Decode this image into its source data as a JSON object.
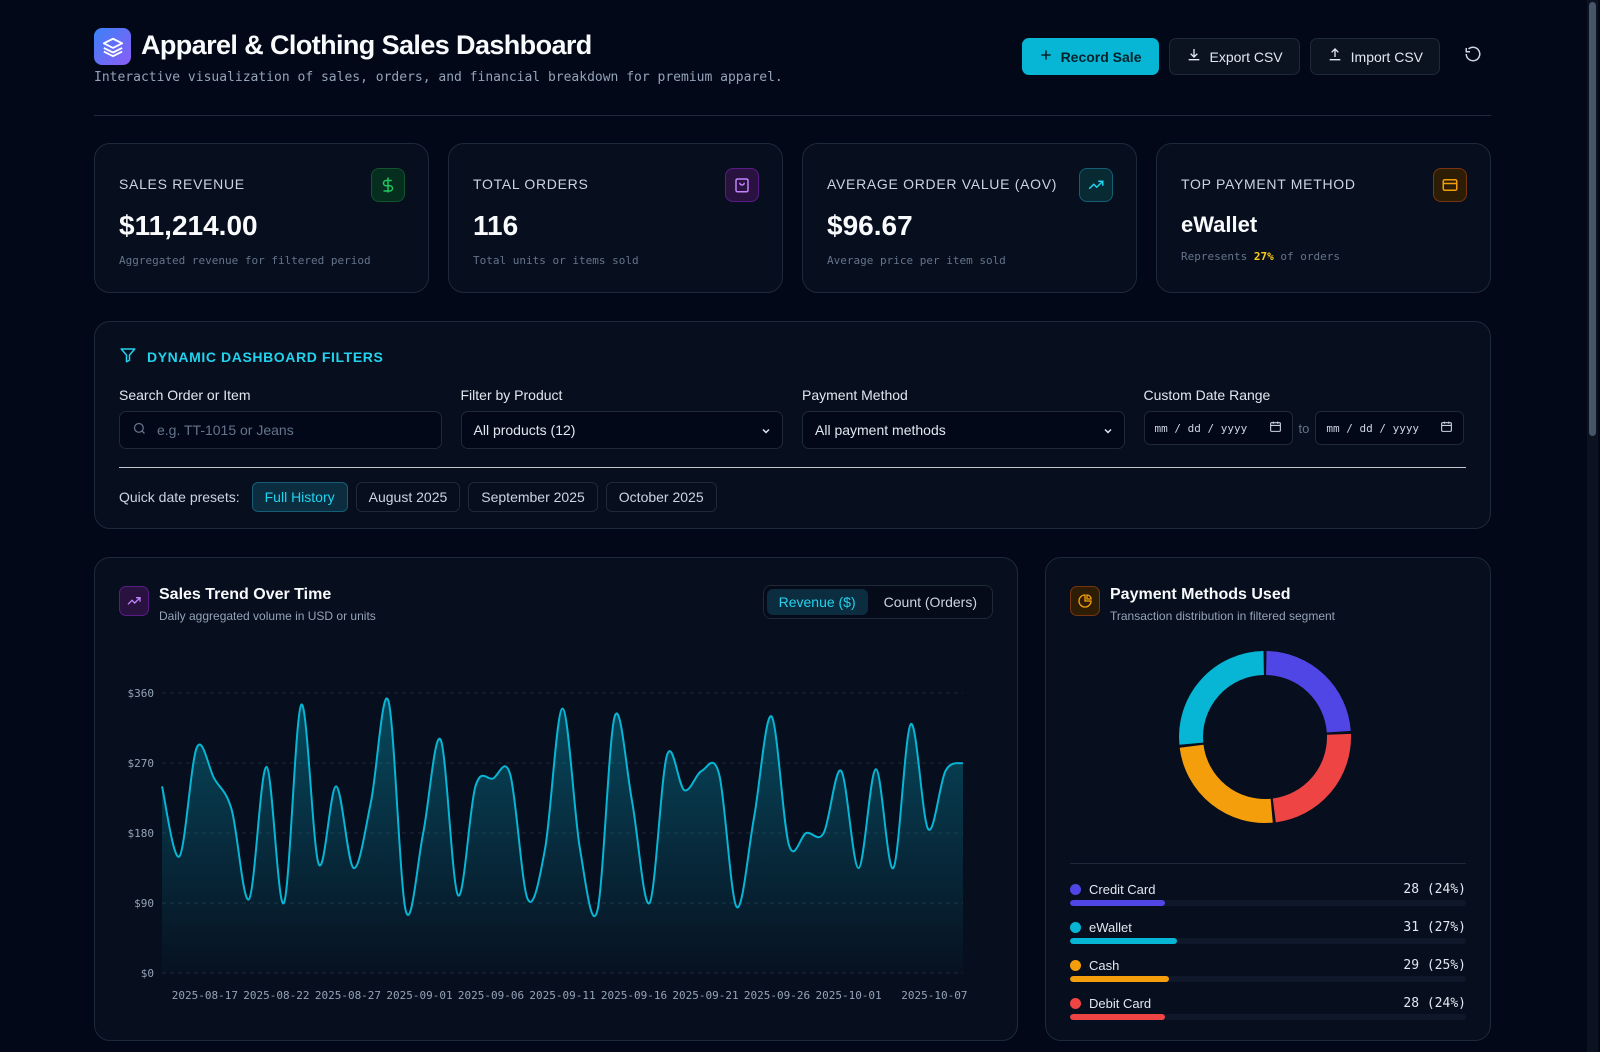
{
  "header": {
    "title": "Apparel & Clothing Sales Dashboard",
    "subtitle": "Interactive visualization of sales, orders, and financial breakdown for premium apparel.",
    "actions": {
      "record": "Record Sale",
      "export": "Export CSV",
      "import": "Import CSV"
    }
  },
  "kpis": [
    {
      "label": "SALES REVENUE",
      "value": "$11,214.00",
      "note": "Aggregated revenue for filtered period",
      "icon": "dollar-icon",
      "color": "#22c55e"
    },
    {
      "label": "TOTAL ORDERS",
      "value": "116",
      "note": "Total units or items sold",
      "icon": "shopping-bag-icon",
      "color": "#a855f7"
    },
    {
      "label": "AVERAGE ORDER VALUE (AOV)",
      "value": "$96.67",
      "note": "Average price per item sold",
      "icon": "trending-up-icon",
      "color": "#06b6d4"
    },
    {
      "label": "TOP PAYMENT METHOD",
      "value": "eWallet",
      "note_prefix": "Represents ",
      "note_highlight": "27%",
      "note_suffix": " of orders",
      "icon": "credit-card-icon",
      "color": "#f59e0b"
    }
  ],
  "filters": {
    "title": "DYNAMIC DASHBOARD FILTERS",
    "search": {
      "label": "Search Order or Item",
      "placeholder": "e.g. TT-1015 or Jeans"
    },
    "product": {
      "label": "Filter by Product",
      "value": "All products (12)"
    },
    "payment": {
      "label": "Payment Method",
      "value": "All payment methods"
    },
    "date": {
      "label": "Custom Date Range",
      "from": "mm / dd / yyyy",
      "to_label": "to",
      "to": "mm / dd / yyyy"
    },
    "presets_label": "Quick date presets:",
    "presets": [
      "Full History",
      "August 2025",
      "September 2025",
      "October 2025"
    ],
    "active_preset": 0
  },
  "trend": {
    "title": "Sales Trend Over Time",
    "subtitle": "Daily aggregated volume in USD or units",
    "toggle": [
      "Revenue ($)",
      "Count (Orders)"
    ],
    "active_toggle": 0
  },
  "payments": {
    "title": "Payment Methods Used",
    "subtitle": "Transaction distribution in filtered segment",
    "items": [
      {
        "name": "Credit Card",
        "count": 28,
        "display": "28 (24%)",
        "pct": 24,
        "color": "#4f46e5"
      },
      {
        "name": "eWallet",
        "count": 31,
        "display": "31 (27%)",
        "pct": 27,
        "color": "#06b6d4"
      },
      {
        "name": "Cash",
        "count": 29,
        "display": "29 (25%)",
        "pct": 25,
        "color": "#f59e0b"
      },
      {
        "name": "Debit Card",
        "count": 28,
        "display": "28 (24%)",
        "pct": 24,
        "color": "#ef4444"
      }
    ]
  },
  "chart_data": {
    "type": "area",
    "ylabel_ticks": [
      "$0",
      "$90",
      "$180",
      "$270",
      "$360"
    ],
    "ylim": [
      0,
      360
    ],
    "x_ticks": [
      "2025-08-17",
      "2025-08-22",
      "2025-08-27",
      "2025-09-01",
      "2025-09-06",
      "2025-09-11",
      "2025-09-16",
      "2025-09-21",
      "2025-09-26",
      "2025-10-01",
      "2025-10-07"
    ],
    "x_start": "2025-08-14",
    "x_end": "2025-10-09",
    "series": [
      {
        "values": [
          240,
          150,
          290,
          250,
          210,
          95,
          265,
          90,
          345,
          140,
          240,
          135,
          220,
          350,
          80,
          180,
          300,
          100,
          240,
          250,
          255,
          95,
          160,
          340,
          160,
          80,
          330,
          220,
          90,
          280,
          235,
          260,
          255,
          85,
          200,
          330,
          165,
          180,
          180,
          260,
          135,
          262,
          135,
          320,
          185,
          260,
          270
        ]
      }
    ],
    "grid": "horizontal-dashed",
    "color": "#06b6d4"
  }
}
